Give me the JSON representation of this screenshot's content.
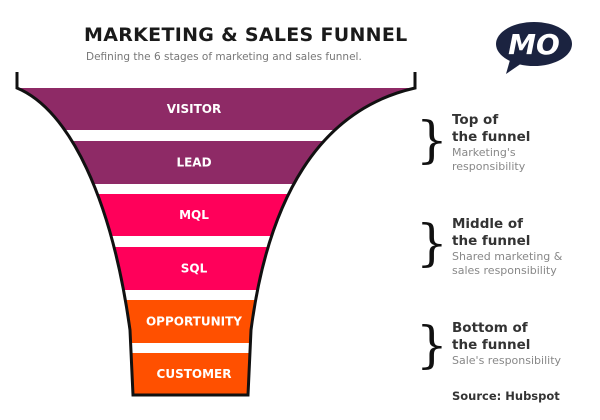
{
  "header": {
    "title": "MARKETING & SALES FUNNEL",
    "subtitle": "Defining the 6 stages of marketing and sales funnel."
  },
  "logo": {
    "text": "MO",
    "color": "#1b2340"
  },
  "stages": [
    {
      "label": "VISITOR",
      "color": "#8e2a66"
    },
    {
      "label": "LEAD",
      "color": "#8e2a66"
    },
    {
      "label": "MQL",
      "color": "#ff005a"
    },
    {
      "label": "SQL",
      "color": "#ff005a"
    },
    {
      "label": "OPPORTUNITY",
      "color": "#ff5000"
    },
    {
      "label": "CUSTOMER",
      "color": "#ff5000"
    }
  ],
  "groups": [
    {
      "heading1": "Top of",
      "heading2": "the funnel",
      "sub1": "Marketing's",
      "sub2": "responsibility"
    },
    {
      "heading1": "Middle of",
      "heading2": "the funnel",
      "sub1": "Shared marketing &",
      "sub2": "sales responsibility"
    },
    {
      "heading1": "Bottom of",
      "heading2": "the funnel",
      "sub1": "Sale's responsibility",
      "sub2": ""
    }
  ],
  "source": "Source: Hubspot"
}
